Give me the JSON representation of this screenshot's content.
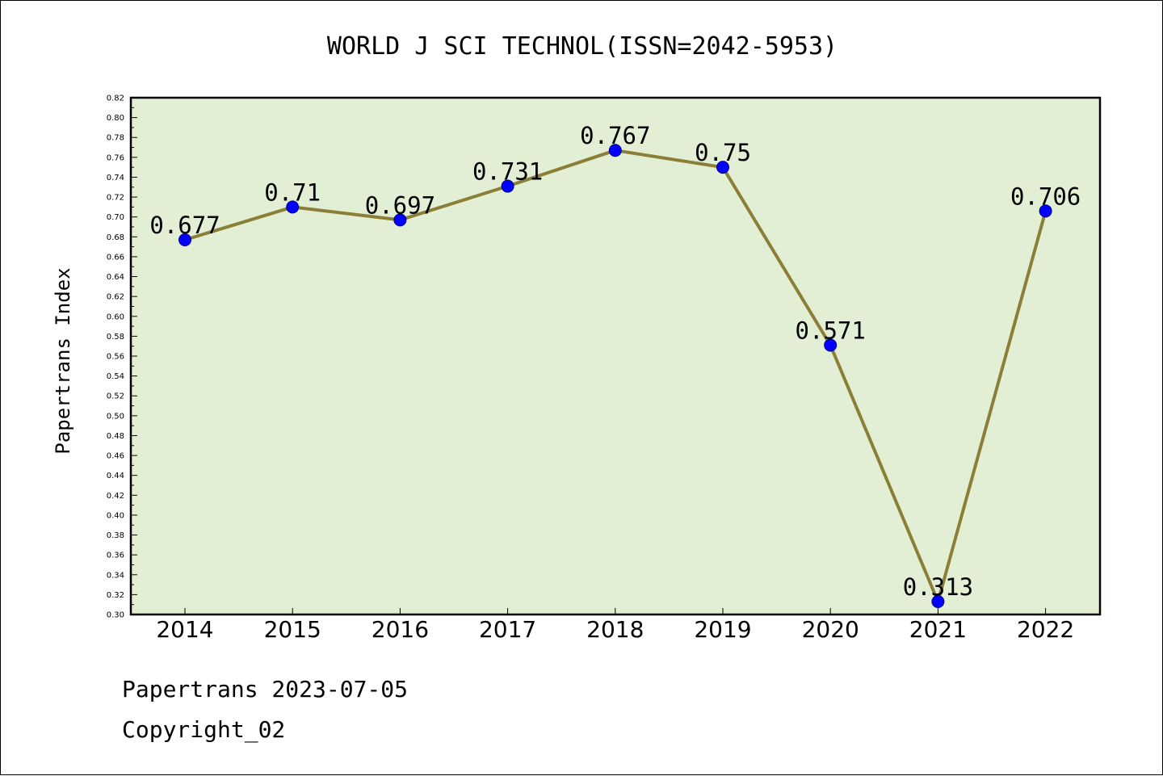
{
  "chart_data": {
    "type": "line",
    "title": "WORLD J SCI TECHNOL(ISSN=2042-5953)",
    "xlabel": "",
    "ylabel": "Papertrans Index",
    "categories": [
      "2014",
      "2015",
      "2016",
      "2017",
      "2018",
      "2019",
      "2020",
      "2021",
      "2022"
    ],
    "series": [
      {
        "values": [
          0.677,
          0.71,
          0.697,
          0.731,
          0.767,
          0.75,
          0.571,
          0.313,
          0.706
        ],
        "data_labels": [
          "0.677",
          "0.71",
          "0.697",
          "0.731",
          "0.767",
          "0.75",
          "0.571",
          "0.313",
          "0.706"
        ]
      }
    ],
    "ylim": [
      0.3,
      0.82
    ],
    "yticks": [
      "0.30",
      "0.32",
      "0.34",
      "0.36",
      "0.38",
      "0.40",
      "0.42",
      "0.44",
      "0.46",
      "0.48",
      "0.50",
      "0.52",
      "0.54",
      "0.56",
      "0.58",
      "0.60",
      "0.62",
      "0.64",
      "0.66",
      "0.68",
      "0.70",
      "0.72",
      "0.74",
      "0.76",
      "0.78",
      "0.80",
      "0.82"
    ],
    "grid": false,
    "colors": {
      "plot_background": "#e2efd5",
      "line": "#8b7f38",
      "marker": "#0000ff",
      "axes": "#000000"
    }
  },
  "footer": {
    "date_line": "Papertrans 2023-07-05",
    "copyright": "Copyright_02"
  }
}
